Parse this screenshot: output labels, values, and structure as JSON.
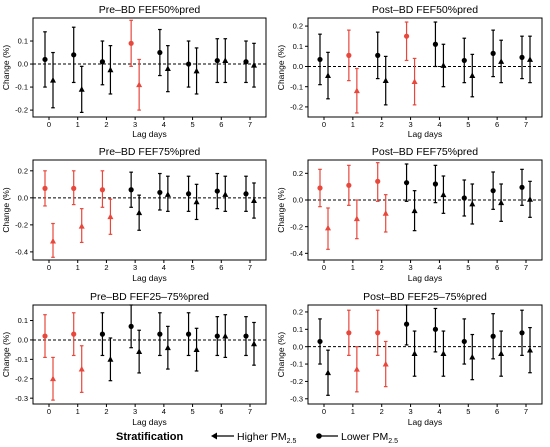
{
  "colors": {
    "highlight": "#e8473c",
    "normal": "#000000"
  },
  "legend": {
    "title": "Stratification",
    "items": [
      {
        "marker": "triangle",
        "label": "Higher PM",
        "sub": "2.5"
      },
      {
        "marker": "circle",
        "label": "Lower PM",
        "sub": "2.5"
      }
    ]
  },
  "chart_data": [
    {
      "type": "errorbar",
      "title": "Pre–BD FEF50%pred",
      "xlabel": "Lag days",
      "ylabel": "Change (%)",
      "categories": [
        "0",
        "1",
        "2",
        "3",
        "4",
        "5",
        "6",
        "7"
      ],
      "ylim": [
        -0.23,
        0.2
      ],
      "yticks": [
        -0.2,
        -0.1,
        0.0,
        0.1
      ],
      "highlight": [
        3
      ],
      "series": [
        {
          "marker": "circle",
          "values": [
            0.02,
            0.04,
            0.01,
            0.09,
            0.05,
            0.0,
            0.015,
            0.01
          ],
          "lower": [
            -0.1,
            -0.08,
            -0.09,
            -0.01,
            -0.05,
            -0.1,
            -0.08,
            -0.08
          ],
          "upper": [
            0.14,
            0.16,
            0.1,
            0.19,
            0.15,
            0.1,
            0.11,
            0.1
          ]
        },
        {
          "marker": "triangle",
          "values": [
            -0.07,
            -0.11,
            -0.025,
            -0.09,
            -0.02,
            -0.03,
            0.015,
            -0.005
          ],
          "lower": [
            -0.19,
            -0.21,
            -0.13,
            -0.2,
            -0.12,
            -0.13,
            -0.08,
            -0.1
          ],
          "upper": [
            0.05,
            -0.01,
            0.08,
            0.02,
            0.08,
            0.07,
            0.11,
            0.09
          ]
        }
      ]
    },
    {
      "type": "errorbar",
      "title": "Post–BD FEF50%pred",
      "xlabel": "Lag days",
      "ylabel": "Change (%)",
      "categories": [
        "0",
        "1",
        "2",
        "3",
        "4",
        "5",
        "6",
        "7"
      ],
      "ylim": [
        -0.25,
        0.24
      ],
      "yticks": [
        -0.2,
        -0.1,
        0.0,
        0.1,
        0.2
      ],
      "highlight": [
        1,
        3
      ],
      "series": [
        {
          "marker": "circle",
          "values": [
            0.035,
            0.055,
            0.055,
            0.15,
            0.11,
            0.03,
            0.065,
            0.045
          ],
          "lower": [
            -0.09,
            -0.07,
            -0.06,
            0.03,
            0.0,
            -0.08,
            -0.05,
            -0.06
          ],
          "upper": [
            0.16,
            0.18,
            0.17,
            0.22,
            0.22,
            0.14,
            0.18,
            0.15
          ]
        },
        {
          "marker": "triangle",
          "values": [
            -0.045,
            -0.12,
            -0.07,
            -0.075,
            0.005,
            -0.045,
            0.025,
            0.035
          ],
          "lower": [
            -0.16,
            -0.23,
            -0.19,
            -0.19,
            -0.1,
            -0.15,
            -0.08,
            -0.08
          ],
          "upper": [
            0.07,
            -0.01,
            0.05,
            0.04,
            0.11,
            0.06,
            0.13,
            0.15
          ]
        }
      ]
    },
    {
      "type": "errorbar",
      "title": "Pre–BD FEF75%pred",
      "xlabel": "Lag days",
      "ylabel": "Change (%)",
      "categories": [
        "0",
        "1",
        "2",
        "3",
        "4",
        "5",
        "6",
        "7"
      ],
      "ylim": [
        -0.46,
        0.28
      ],
      "yticks": [
        -0.4,
        -0.2,
        0.0,
        0.2
      ],
      "highlight": [
        0,
        1,
        2
      ],
      "series": [
        {
          "marker": "circle",
          "values": [
            0.07,
            0.07,
            0.06,
            0.06,
            0.04,
            0.03,
            0.05,
            0.03
          ],
          "lower": [
            -0.06,
            -0.05,
            -0.07,
            -0.07,
            -0.09,
            -0.1,
            -0.08,
            -0.1
          ],
          "upper": [
            0.2,
            0.2,
            0.2,
            0.19,
            0.18,
            0.16,
            0.18,
            0.16
          ]
        },
        {
          "marker": "triangle",
          "values": [
            -0.32,
            -0.21,
            -0.14,
            -0.11,
            0.025,
            -0.03,
            0.025,
            -0.02
          ],
          "lower": [
            -0.44,
            -0.33,
            -0.27,
            -0.24,
            -0.1,
            -0.16,
            -0.1,
            -0.15
          ],
          "upper": [
            -0.19,
            -0.08,
            -0.01,
            0.02,
            0.16,
            0.1,
            0.16,
            0.11
          ]
        }
      ]
    },
    {
      "type": "errorbar",
      "title": "Post–BD FEF75%pred",
      "xlabel": "Lag days",
      "ylabel": "Change (%)",
      "categories": [
        "0",
        "1",
        "2",
        "3",
        "4",
        "5",
        "6",
        "7"
      ],
      "ylim": [
        -0.45,
        0.3
      ],
      "yticks": [
        -0.4,
        -0.2,
        0.0,
        0.2
      ],
      "highlight": [
        0,
        1,
        2
      ],
      "series": [
        {
          "marker": "circle",
          "values": [
            0.09,
            0.11,
            0.14,
            0.13,
            0.12,
            0.015,
            0.07,
            0.095
          ],
          "lower": [
            -0.05,
            -0.04,
            -0.01,
            -0.01,
            -0.02,
            -0.12,
            -0.07,
            -0.04
          ],
          "upper": [
            0.23,
            0.26,
            0.28,
            0.27,
            0.26,
            0.15,
            0.21,
            0.23
          ]
        },
        {
          "marker": "triangle",
          "values": [
            -0.21,
            -0.14,
            -0.1,
            -0.08,
            0.04,
            -0.03,
            -0.02,
            0.005
          ],
          "lower": [
            -0.37,
            -0.29,
            -0.24,
            -0.23,
            -0.1,
            -0.18,
            -0.16,
            -0.13
          ],
          "upper": [
            -0.06,
            0.0,
            0.04,
            0.07,
            0.18,
            0.12,
            0.12,
            0.14
          ]
        }
      ]
    },
    {
      "type": "errorbar",
      "title": "Pre–BD FEF25–75%pred",
      "xlabel": "Lag days",
      "ylabel": "Change (%)",
      "categories": [
        "0",
        "1",
        "2",
        "3",
        "4",
        "5",
        "6",
        "7"
      ],
      "ylim": [
        -0.33,
        0.18
      ],
      "yticks": [
        -0.3,
        -0.2,
        -0.1,
        0.0,
        0.1
      ],
      "highlight": [
        0,
        1
      ],
      "series": [
        {
          "marker": "circle",
          "values": [
            0.02,
            0.03,
            0.03,
            0.07,
            0.03,
            0.03,
            0.02,
            0.02
          ],
          "lower": [
            -0.09,
            -0.08,
            -0.08,
            -0.04,
            -0.08,
            -0.08,
            -0.08,
            -0.08
          ],
          "upper": [
            0.13,
            0.14,
            0.14,
            0.18,
            0.14,
            0.14,
            0.12,
            0.12
          ]
        },
        {
          "marker": "triangle",
          "values": [
            -0.2,
            -0.15,
            -0.1,
            -0.06,
            -0.04,
            -0.05,
            0.02,
            -0.02
          ],
          "lower": [
            -0.31,
            -0.27,
            -0.21,
            -0.17,
            -0.15,
            -0.16,
            -0.09,
            -0.13
          ],
          "upper": [
            -0.09,
            -0.03,
            0.01,
            0.05,
            0.07,
            0.06,
            0.13,
            0.09
          ]
        }
      ]
    },
    {
      "type": "errorbar",
      "title": "Post–BD FEF25–75%pred",
      "xlabel": "Lag days",
      "ylabel": "Change (%)",
      "categories": [
        "0",
        "1",
        "2",
        "3",
        "4",
        "5",
        "6",
        "7"
      ],
      "ylim": [
        -0.33,
        0.24
      ],
      "yticks": [
        -0.3,
        -0.2,
        -0.1,
        0.0,
        0.1,
        0.2
      ],
      "highlight": [
        1,
        2
      ],
      "series": [
        {
          "marker": "circle",
          "values": [
            0.03,
            0.08,
            0.08,
            0.13,
            0.1,
            0.03,
            0.06,
            0.08
          ],
          "lower": [
            -0.1,
            -0.05,
            -0.05,
            0.01,
            -0.03,
            -0.1,
            -0.07,
            -0.05
          ],
          "upper": [
            0.16,
            0.21,
            0.21,
            0.24,
            0.22,
            0.16,
            0.19,
            0.21
          ]
        },
        {
          "marker": "triangle",
          "values": [
            -0.15,
            -0.13,
            -0.1,
            -0.04,
            -0.04,
            -0.06,
            -0.04,
            -0.02
          ],
          "lower": [
            -0.28,
            -0.26,
            -0.23,
            -0.17,
            -0.17,
            -0.19,
            -0.17,
            -0.15
          ],
          "upper": [
            -0.02,
            0.0,
            0.03,
            0.09,
            0.09,
            0.07,
            0.09,
            0.11
          ]
        }
      ]
    }
  ]
}
